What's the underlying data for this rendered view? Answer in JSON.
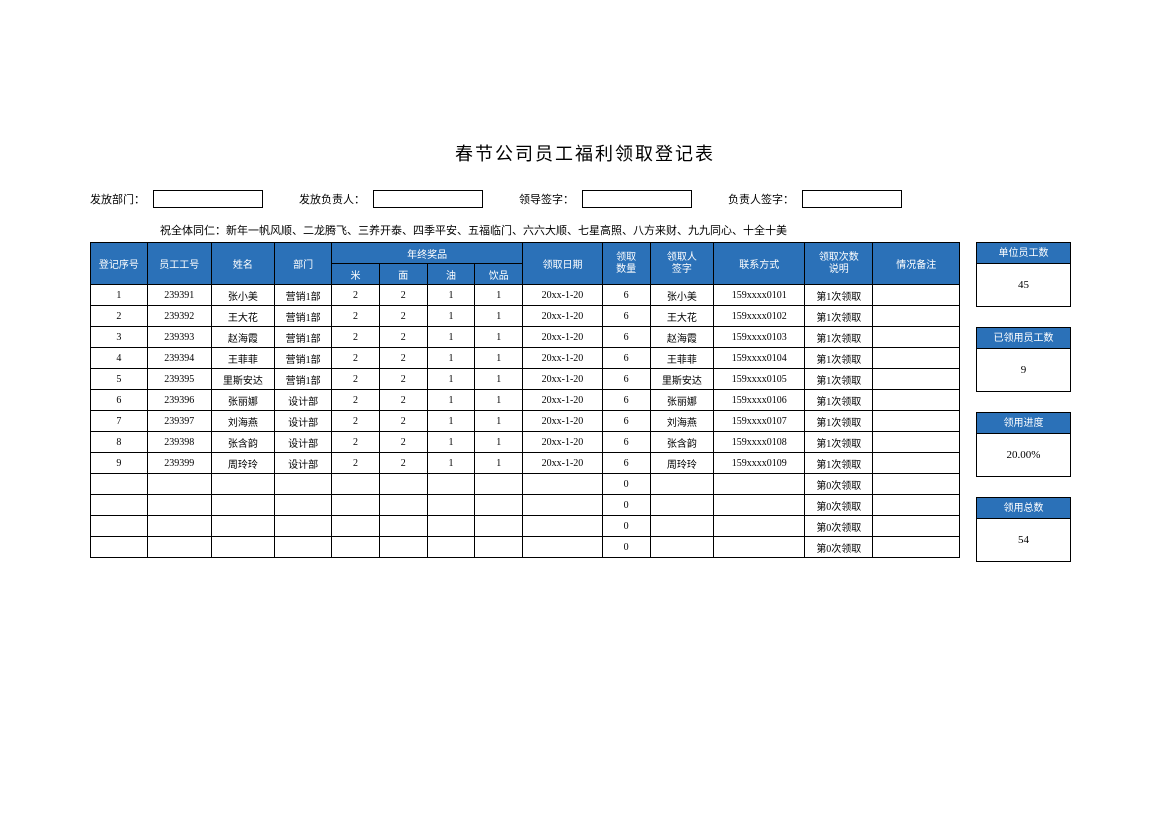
{
  "title": "春节公司员工福利领取登记表",
  "signatures": {
    "dept_label": "发放部门：",
    "person_label": "发放负责人：",
    "leader_label": "领导签字：",
    "resp_label": "负责人签字："
  },
  "greeting": "祝全体同仁：新年一帆风顺、二龙腾飞、三养开泰、四季平安、五福临门、六六大顺、七星高照、八方来财、九九同心、十全十美",
  "headers": {
    "seq": "登记序号",
    "emp_id": "员工工号",
    "name": "姓名",
    "dept": "部门",
    "prizes": "年终奖品",
    "rice": "米",
    "noodle": "面",
    "oil": "油",
    "drink": "饮品",
    "date": "领取日期",
    "qty": "领取\n数量",
    "signer": "领取人\n签字",
    "contact": "联系方式",
    "times": "领取次数\n说明",
    "remark": "情况备注"
  },
  "rows": [
    {
      "seq": "1",
      "emp_id": "239391",
      "name": "张小美",
      "dept": "营销1部",
      "rice": "2",
      "noodle": "2",
      "oil": "1",
      "drink": "1",
      "date": "20xx-1-20",
      "qty": "6",
      "signer": "张小美",
      "contact": "159xxxx0101",
      "times": "第1次领取",
      "remark": ""
    },
    {
      "seq": "2",
      "emp_id": "239392",
      "name": "王大花",
      "dept": "营销1部",
      "rice": "2",
      "noodle": "2",
      "oil": "1",
      "drink": "1",
      "date": "20xx-1-20",
      "qty": "6",
      "signer": "王大花",
      "contact": "159xxxx0102",
      "times": "第1次领取",
      "remark": ""
    },
    {
      "seq": "3",
      "emp_id": "239393",
      "name": "赵海霞",
      "dept": "营销1部",
      "rice": "2",
      "noodle": "2",
      "oil": "1",
      "drink": "1",
      "date": "20xx-1-20",
      "qty": "6",
      "signer": "赵海霞",
      "contact": "159xxxx0103",
      "times": "第1次领取",
      "remark": ""
    },
    {
      "seq": "4",
      "emp_id": "239394",
      "name": "王菲菲",
      "dept": "营销1部",
      "rice": "2",
      "noodle": "2",
      "oil": "1",
      "drink": "1",
      "date": "20xx-1-20",
      "qty": "6",
      "signer": "王菲菲",
      "contact": "159xxxx0104",
      "times": "第1次领取",
      "remark": ""
    },
    {
      "seq": "5",
      "emp_id": "239395",
      "name": "里斯安达",
      "dept": "营销1部",
      "rice": "2",
      "noodle": "2",
      "oil": "1",
      "drink": "1",
      "date": "20xx-1-20",
      "qty": "6",
      "signer": "里斯安达",
      "contact": "159xxxx0105",
      "times": "第1次领取",
      "remark": ""
    },
    {
      "seq": "6",
      "emp_id": "239396",
      "name": "张丽娜",
      "dept": "设计部",
      "rice": "2",
      "noodle": "2",
      "oil": "1",
      "drink": "1",
      "date": "20xx-1-20",
      "qty": "6",
      "signer": "张丽娜",
      "contact": "159xxxx0106",
      "times": "第1次领取",
      "remark": ""
    },
    {
      "seq": "7",
      "emp_id": "239397",
      "name": "刘海燕",
      "dept": "设计部",
      "rice": "2",
      "noodle": "2",
      "oil": "1",
      "drink": "1",
      "date": "20xx-1-20",
      "qty": "6",
      "signer": "刘海燕",
      "contact": "159xxxx0107",
      "times": "第1次领取",
      "remark": ""
    },
    {
      "seq": "8",
      "emp_id": "239398",
      "name": "张含韵",
      "dept": "设计部",
      "rice": "2",
      "noodle": "2",
      "oil": "1",
      "drink": "1",
      "date": "20xx-1-20",
      "qty": "6",
      "signer": "张含韵",
      "contact": "159xxxx0108",
      "times": "第1次领取",
      "remark": ""
    },
    {
      "seq": "9",
      "emp_id": "239399",
      "name": "周玲玲",
      "dept": "设计部",
      "rice": "2",
      "noodle": "2",
      "oil": "1",
      "drink": "1",
      "date": "20xx-1-20",
      "qty": "6",
      "signer": "周玲玲",
      "contact": "159xxxx0109",
      "times": "第1次领取",
      "remark": ""
    },
    {
      "seq": "",
      "emp_id": "",
      "name": "",
      "dept": "",
      "rice": "",
      "noodle": "",
      "oil": "",
      "drink": "",
      "date": "",
      "qty": "0",
      "signer": "",
      "contact": "",
      "times": "第0次领取",
      "remark": ""
    },
    {
      "seq": "",
      "emp_id": "",
      "name": "",
      "dept": "",
      "rice": "",
      "noodle": "",
      "oil": "",
      "drink": "",
      "date": "",
      "qty": "0",
      "signer": "",
      "contact": "",
      "times": "第0次领取",
      "remark": ""
    },
    {
      "seq": "",
      "emp_id": "",
      "name": "",
      "dept": "",
      "rice": "",
      "noodle": "",
      "oil": "",
      "drink": "",
      "date": "",
      "qty": "0",
      "signer": "",
      "contact": "",
      "times": "第0次领取",
      "remark": ""
    },
    {
      "seq": "",
      "emp_id": "",
      "name": "",
      "dept": "",
      "rice": "",
      "noodle": "",
      "oil": "",
      "drink": "",
      "date": "",
      "qty": "0",
      "signer": "",
      "contact": "",
      "times": "第0次领取",
      "remark": ""
    }
  ],
  "stats": {
    "total_emp_label": "单位员工数",
    "total_emp": "45",
    "received_emp_label": "已领用员工数",
    "received_emp": "9",
    "progress_label": "领用进度",
    "progress": "20.00%",
    "total_qty_label": "领用总数",
    "total_qty": "54"
  },
  "col_widths": {
    "seq": 50,
    "emp_id": 56,
    "name": 56,
    "dept": 50,
    "rice": 42,
    "noodle": 42,
    "oil": 42,
    "drink": 42,
    "date": 70,
    "qty": 42,
    "signer": 56,
    "contact": 80,
    "times": 60,
    "remark": 76
  },
  "colors": {
    "header_bg": "#2b71b8",
    "header_fg": "#ffffff",
    "border": "#000000",
    "background": "#ffffff"
  }
}
